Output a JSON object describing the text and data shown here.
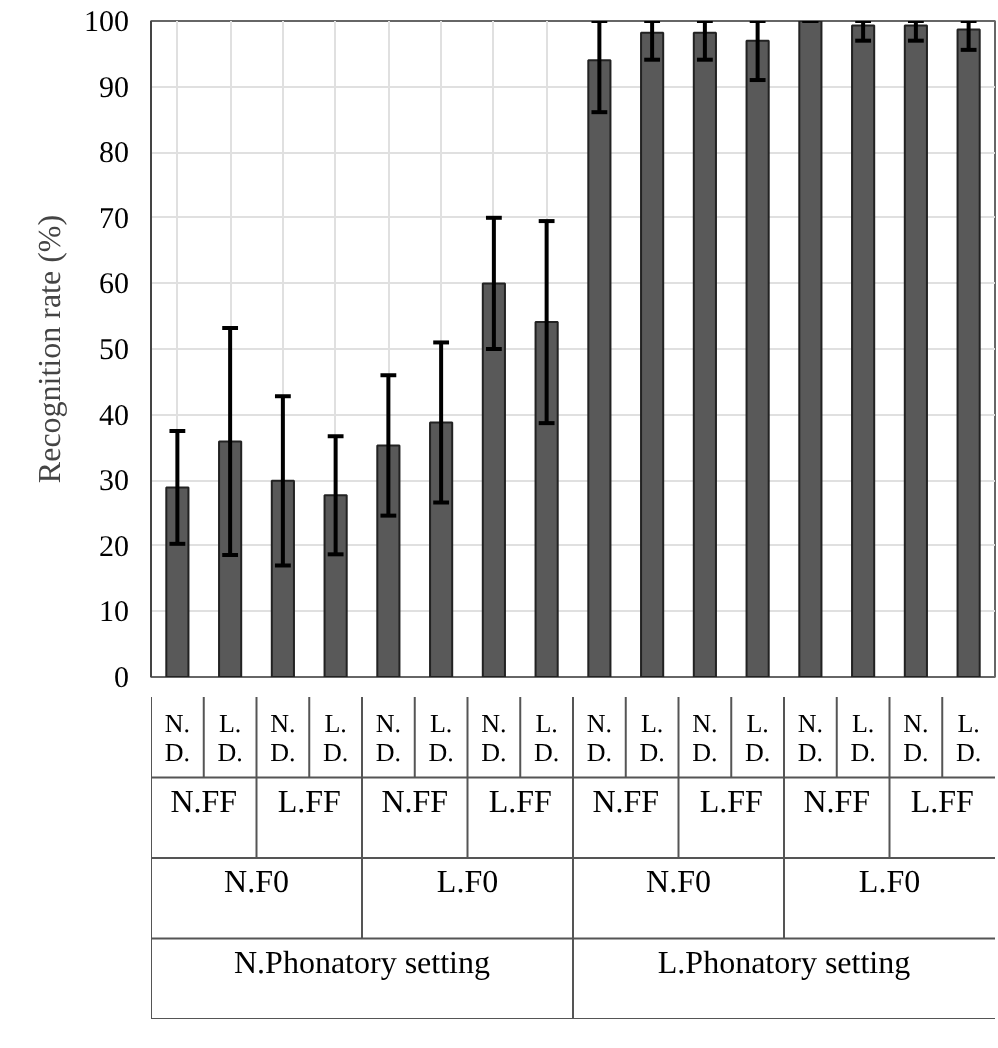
{
  "chart_data": {
    "type": "bar",
    "ylabel": "Recognition rate (%)",
    "categories": [
      "N.\nD.",
      "L.\nD.",
      "N.\nD.",
      "L.\nD.",
      "N.\nD.",
      "L.\nD.",
      "N.\nD.",
      "L.\nD.",
      "N.\nD.",
      "L.\nD.",
      "N.\nD.",
      "L.\nD.",
      "N.\nD.",
      "L.\nD.",
      "N.\nD.",
      "L.\nD."
    ],
    "values": [
      28.9,
      35.9,
      29.9,
      27.7,
      35.3,
      38.8,
      60,
      54.1,
      94,
      98.2,
      98.2,
      97,
      100,
      99.3,
      99.3,
      98.7
    ],
    "errors": [
      8.6,
      17.3,
      12.9,
      9,
      10.7,
      12.2,
      10,
      15.4,
      [
        86.1,
        100
      ],
      [
        94.1,
        100
      ],
      [
        94.1,
        100
      ],
      [
        91,
        100
      ],
      0,
      [
        97,
        100
      ],
      [
        97,
        100
      ],
      [
        95.6,
        100
      ]
    ],
    "color": "#595959",
    "ylim": [
      0,
      100
    ],
    "yticks": [
      0,
      10,
      20,
      30,
      40,
      50,
      60,
      70,
      80,
      90,
      100
    ],
    "grid": true,
    "annotations": [
      "N.FF",
      "L.FF",
      "N.FF",
      "L.FF",
      "N.FF",
      "L.FF",
      "N.FF",
      "L.FF",
      "N.F0",
      "L.F0",
      "N.F0",
      "L.F0",
      "N.Phonatory setting",
      "L.Phonatory setting"
    ]
  }
}
